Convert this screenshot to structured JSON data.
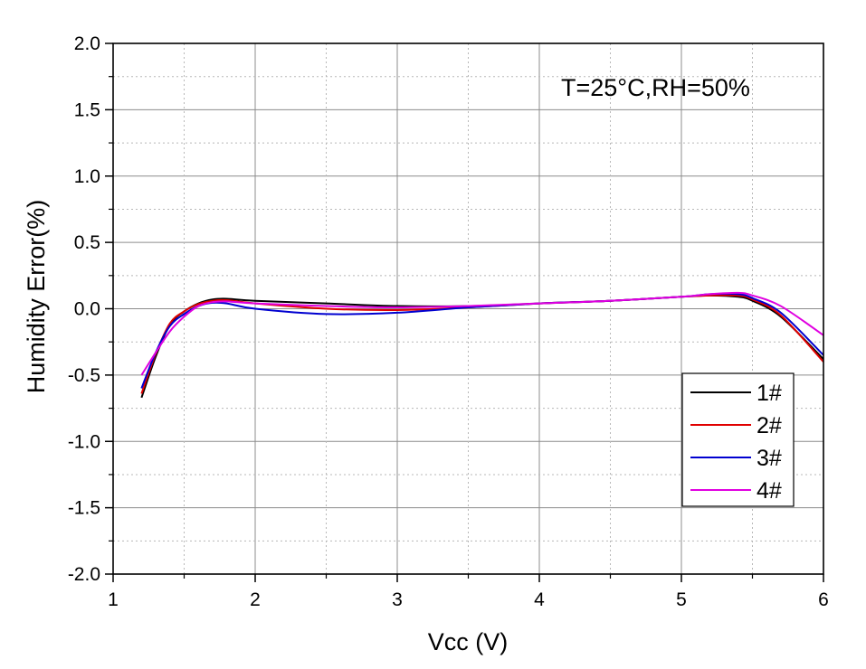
{
  "chart_data": {
    "type": "line",
    "title": "",
    "annotation": "T=25°C,RH=50%",
    "xlabel": "Vcc (V)",
    "ylabel": "Humidity Error(%)",
    "xlim": [
      1,
      6
    ],
    "ylim": [
      -2.0,
      2.0
    ],
    "xticks": [
      1,
      2,
      3,
      4,
      5,
      6
    ],
    "xtick_labels": [
      "1",
      "2",
      "3",
      "4",
      "5",
      "6"
    ],
    "yticks": [
      2.0,
      1.5,
      1.0,
      0.5,
      0.0,
      -0.5,
      -1.0,
      -1.5,
      -2.0
    ],
    "ytick_labels": [
      "2.0",
      "1.5",
      "1.0",
      "0.5",
      "0.0",
      "-0.5",
      "-1.0",
      "-1.5",
      "-2.0"
    ],
    "grid": true,
    "legend_position": "lower-right",
    "series": [
      {
        "name": "1#",
        "color": "#000000",
        "x": [
          1.2,
          1.3,
          1.4,
          1.5,
          1.6,
          1.7,
          1.8,
          2.0,
          2.5,
          3.0,
          3.5,
          4.0,
          4.5,
          5.0,
          5.2,
          5.4,
          5.5,
          5.7,
          6.0
        ],
        "y": [
          -0.67,
          -0.36,
          -0.12,
          -0.02,
          0.04,
          0.07,
          0.075,
          0.06,
          0.04,
          0.02,
          0.02,
          0.04,
          0.06,
          0.09,
          0.1,
          0.09,
          0.06,
          -0.06,
          -0.38
        ]
      },
      {
        "name": "2#",
        "color": "#e00000",
        "x": [
          1.2,
          1.3,
          1.4,
          1.5,
          1.6,
          1.7,
          1.8,
          2.0,
          2.5,
          3.0,
          3.5,
          4.0,
          4.5,
          5.0,
          5.2,
          5.4,
          5.5,
          5.7,
          6.0
        ],
        "y": [
          -0.64,
          -0.34,
          -0.11,
          -0.02,
          0.035,
          0.06,
          0.065,
          0.04,
          0.0,
          -0.01,
          0.01,
          0.04,
          0.06,
          0.09,
          0.1,
          0.1,
          0.07,
          -0.05,
          -0.4
        ]
      },
      {
        "name": "3#",
        "color": "#0000d0",
        "x": [
          1.2,
          1.3,
          1.4,
          1.5,
          1.6,
          1.7,
          1.8,
          2.0,
          2.5,
          3.0,
          3.5,
          4.0,
          4.5,
          5.0,
          5.2,
          5.4,
          5.5,
          5.7,
          6.0
        ],
        "y": [
          -0.6,
          -0.33,
          -0.13,
          -0.04,
          0.02,
          0.045,
          0.04,
          0.0,
          -0.04,
          -0.03,
          0.01,
          0.04,
          0.06,
          0.09,
          0.11,
          0.11,
          0.08,
          -0.03,
          -0.35
        ]
      },
      {
        "name": "4#",
        "color": "#e000e0",
        "x": [
          1.2,
          1.3,
          1.4,
          1.5,
          1.6,
          1.7,
          1.8,
          2.0,
          2.5,
          3.0,
          3.5,
          4.0,
          4.5,
          5.0,
          5.2,
          5.4,
          5.5,
          5.7,
          6.0
        ],
        "y": [
          -0.5,
          -0.33,
          -0.17,
          -0.06,
          0.02,
          0.05,
          0.055,
          0.04,
          0.02,
          0.01,
          0.02,
          0.04,
          0.06,
          0.09,
          0.11,
          0.12,
          0.1,
          0.02,
          -0.2
        ]
      }
    ]
  }
}
